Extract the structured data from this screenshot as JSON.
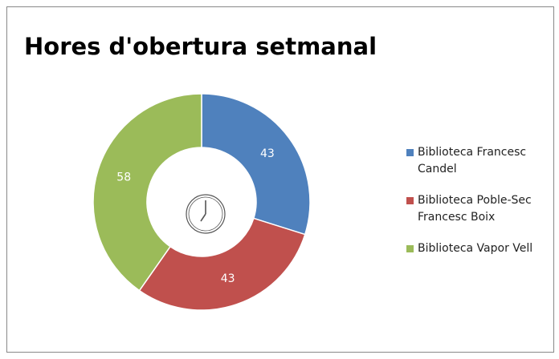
{
  "chart_data": {
    "type": "donut",
    "title": "Hores d'obertura setmanal",
    "categories": [
      "Biblioteca Francesc Candel",
      "Biblioteca Poble-Sec Francesc Boix",
      "Biblioteca Vapor Vell"
    ],
    "values": [
      43,
      43,
      58
    ],
    "colors": [
      "#4f81bd",
      "#c0504d",
      "#9bbb59"
    ],
    "legend": "right"
  }
}
